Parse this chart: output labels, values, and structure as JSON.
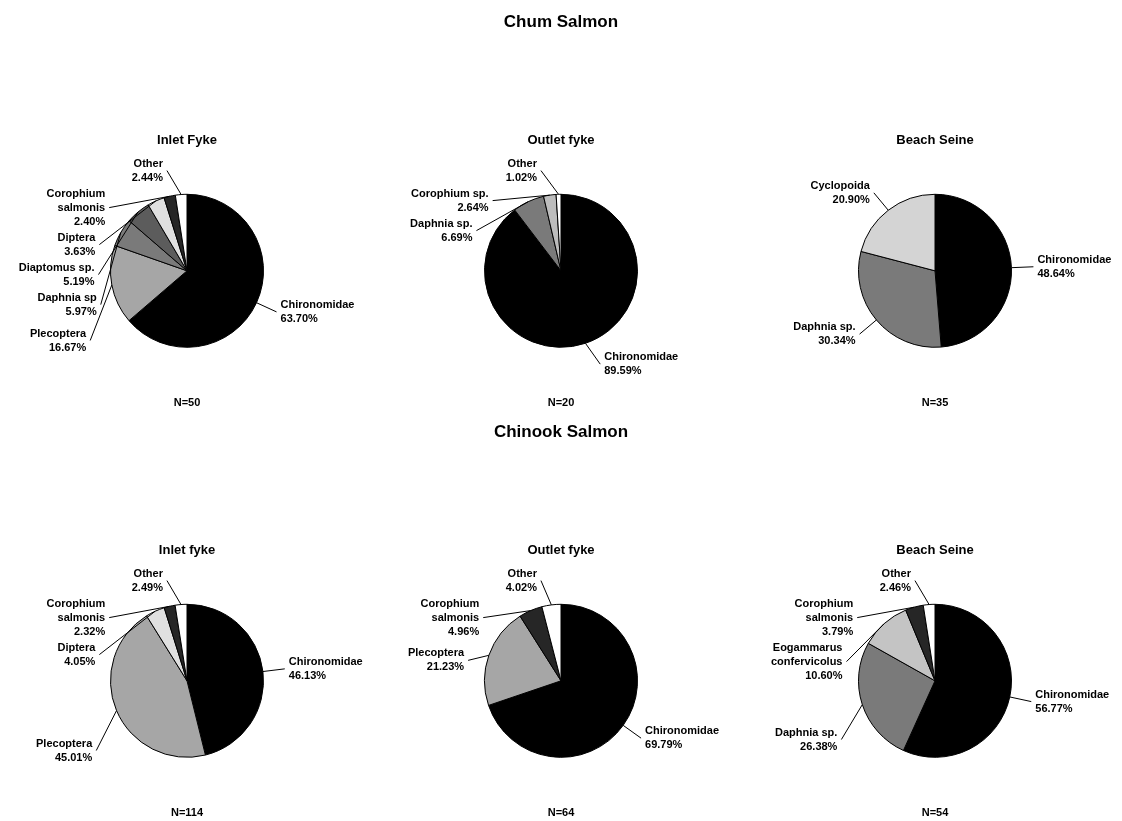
{
  "chart_data": [
    {
      "type": "pie",
      "title": "Inlet Fyke",
      "categories": [
        "Chironomidae",
        "Plecoptera",
        "Daphnia sp",
        "Diaptomus sp.",
        "Diptera",
        "Corophium salmonis",
        "Other"
      ],
      "values": [
        63.7,
        16.67,
        5.97,
        5.19,
        3.63,
        2.4,
        2.44
      ],
      "value_labels": [
        "63.70%",
        "16.67%",
        "5.97%",
        "5.19%",
        "3.63%",
        "2.40%",
        "2.44%"
      ],
      "colors": [
        "#000000",
        "#a6a6a6",
        "#7a7a7a",
        "#5c5c5c",
        "#e0e0e0",
        "#262626",
        "#ffffff"
      ],
      "annotations": [
        "N=50"
      ],
      "legend": false
    },
    {
      "type": "pie",
      "subtitle": "Chum Salmon",
      "title": "Outlet fyke",
      "categories": [
        "Chironomidae",
        "Daphnia sp.",
        "Corophium sp.",
        "Other"
      ],
      "values": [
        89.59,
        6.69,
        2.64,
        1.02
      ],
      "value_labels": [
        "89.59%",
        "6.69%",
        "2.64%",
        "1.02%"
      ],
      "colors": [
        "#000000",
        "#7a7a7a",
        "#bdbdbd",
        "#ffffff"
      ],
      "annotations": [
        "N=20"
      ],
      "legend": false
    },
    {
      "type": "pie",
      "title": "Beach Seine",
      "categories": [
        "Chironomidae",
        "Daphnia sp.",
        "Cyclopoida"
      ],
      "values": [
        48.64,
        30.34,
        20.9
      ],
      "value_labels": [
        "48.64%",
        "30.34%",
        "20.90%"
      ],
      "colors": [
        "#000000",
        "#7a7a7a",
        "#d4d4d4"
      ],
      "annotations": [
        "N=35"
      ],
      "legend": false
    },
    {
      "type": "pie",
      "title": "Inlet fyke",
      "categories": [
        "Chironomidae",
        "Plecoptera",
        "Diptera",
        "Corophium salmonis",
        "Other"
      ],
      "values": [
        46.13,
        45.01,
        4.05,
        2.32,
        2.49
      ],
      "value_labels": [
        "46.13%",
        "45.01%",
        "4.05%",
        "2.32%",
        "2.49%"
      ],
      "colors": [
        "#000000",
        "#a6a6a6",
        "#e0e0e0",
        "#262626",
        "#ffffff"
      ],
      "annotations": [
        "N=114"
      ],
      "legend": false
    },
    {
      "type": "pie",
      "subtitle": "Chinook Salmon",
      "title": "Outlet fyke",
      "categories": [
        "Chironomidae",
        "Plecoptera",
        "Corophium salmonis",
        "Other"
      ],
      "values": [
        69.79,
        21.23,
        4.96,
        4.02
      ],
      "value_labels": [
        "69.79%",
        "21.23%",
        "4.96%",
        "4.02%"
      ],
      "colors": [
        "#000000",
        "#a6a6a6",
        "#262626",
        "#ffffff"
      ],
      "annotations": [
        "N=64"
      ],
      "legend": false
    },
    {
      "type": "pie",
      "title": "Beach Seine",
      "categories": [
        "Chironomidae",
        "Daphnia sp.",
        "Eogammarus confervicolus",
        "Corophium salmonis",
        "Other"
      ],
      "values": [
        56.77,
        26.38,
        10.6,
        3.79,
        2.46
      ],
      "value_labels": [
        "56.77%",
        "26.38%",
        "10.60%",
        "3.79%",
        "2.46%"
      ],
      "colors": [
        "#000000",
        "#7a7a7a",
        "#c4c4c4",
        "#262626",
        "#ffffff"
      ],
      "annotations": [
        "N=54"
      ],
      "legend": false
    }
  ]
}
